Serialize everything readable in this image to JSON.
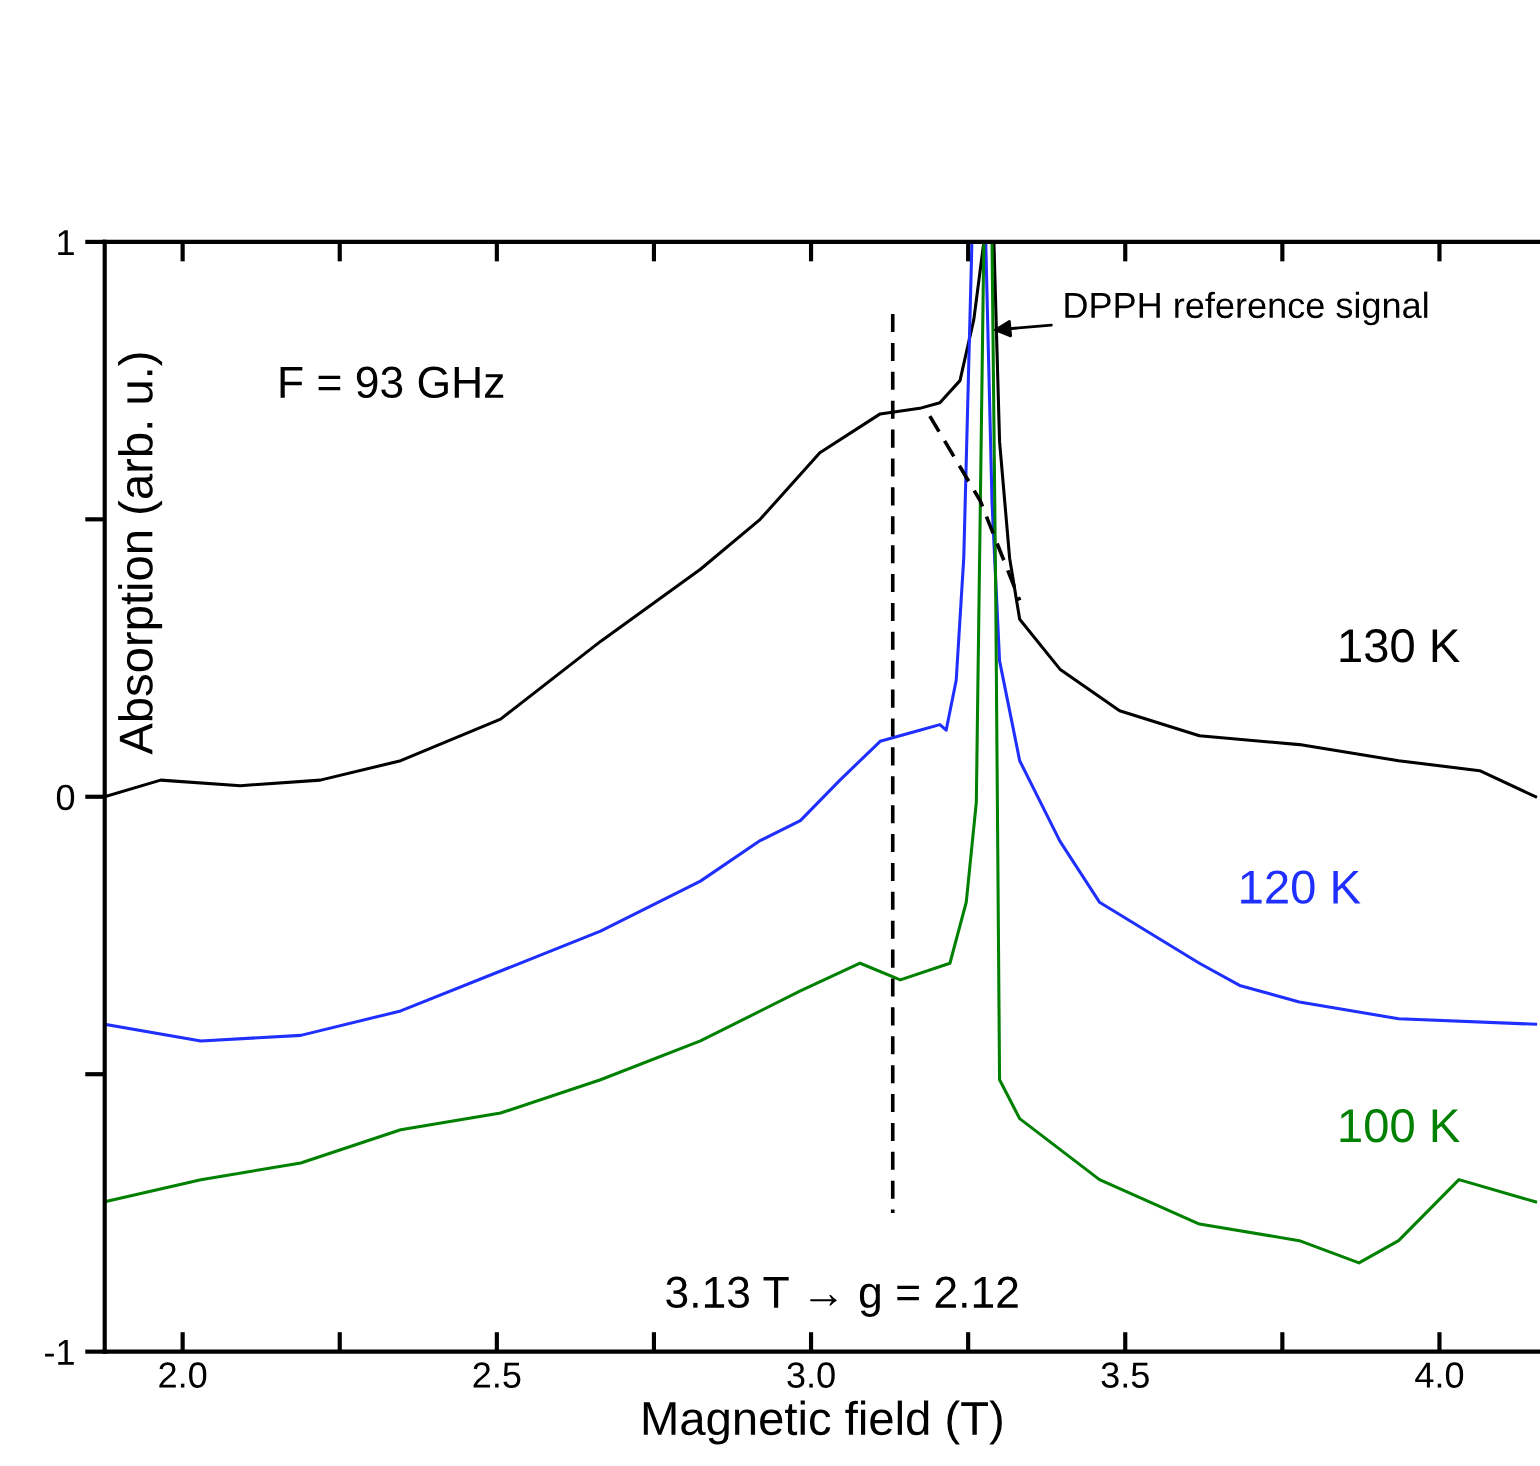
{
  "chart_data": {
    "type": "line",
    "xlabel": "Magnetic field (T)",
    "ylabel": "Absorption (arb. u.)",
    "xlim": [
      1.876,
      4.16
    ],
    "ylim": [
      -1,
      1
    ],
    "xticks": [
      {
        "value": 2.0,
        "label": "2.0"
      },
      {
        "value": 2.25,
        "label": null
      },
      {
        "value": 2.5,
        "label": "2.5"
      },
      {
        "value": 2.75,
        "label": null
      },
      {
        "value": 3.0,
        "label": "3.0"
      },
      {
        "value": 3.25,
        "label": null
      },
      {
        "value": 3.5,
        "label": "3.5"
      },
      {
        "value": 3.75,
        "label": null
      },
      {
        "value": 4.0,
        "label": "4.0"
      }
    ],
    "yticks": [
      -1,
      {
        "value": -0.5,
        "label": null
      },
      0,
      {
        "value": 0.5,
        "label": null
      },
      1
    ],
    "legend": false,
    "grid": false,
    "series": [
      {
        "name": "130 K",
        "color": "#000000",
        "x": [
          1.876,
          1.965,
          2.092,
          2.219,
          2.347,
          2.506,
          2.665,
          2.824,
          2.919,
          3.014,
          3.11,
          3.173,
          3.205,
          3.237,
          3.259,
          3.275,
          3.285,
          3.291,
          3.3,
          3.316,
          3.332,
          3.396,
          3.491,
          3.618,
          3.777,
          3.935,
          4.064,
          4.153
        ],
        "values": [
          0.0,
          0.03,
          0.02,
          0.03,
          0.065,
          0.14,
          0.28,
          0.41,
          0.5,
          0.62,
          0.69,
          0.7,
          0.71,
          0.75,
          0.86,
          1.0,
          1.0,
          1.0,
          0.64,
          0.43,
          0.32,
          0.23,
          0.155,
          0.11,
          0.094,
          0.065,
          0.047,
          0.0
        ]
      },
      {
        "name": "120 K",
        "color": "#1f2fff",
        "x": [
          1.876,
          2.029,
          2.188,
          2.347,
          2.506,
          2.665,
          2.824,
          2.919,
          2.983,
          3.046,
          3.11,
          3.173,
          3.205,
          3.215,
          3.231,
          3.243,
          3.256,
          3.278,
          3.288,
          3.3,
          3.332,
          3.396,
          3.459,
          3.618,
          3.682,
          3.777,
          3.935,
          4.153
        ],
        "values": [
          -0.41,
          -0.44,
          -0.43,
          -0.386,
          -0.314,
          -0.242,
          -0.152,
          -0.079,
          -0.043,
          0.03,
          0.1,
          0.12,
          0.13,
          0.12,
          0.21,
          0.43,
          1.0,
          1.0,
          0.53,
          0.245,
          0.065,
          -0.08,
          -0.19,
          -0.3,
          -0.34,
          -0.37,
          -0.4,
          -0.41
        ]
      },
      {
        "name": "100 K",
        "color": "#008000",
        "x": [
          1.876,
          2.029,
          2.188,
          2.347,
          2.506,
          2.665,
          2.824,
          2.983,
          3.078,
          3.142,
          3.221,
          3.247,
          3.263,
          3.275,
          3.288,
          3.294,
          3.3,
          3.332,
          3.459,
          3.618,
          3.777,
          3.872,
          3.935,
          4.031,
          4.153
        ],
        "values": [
          -0.73,
          -0.69,
          -0.66,
          -0.6,
          -0.57,
          -0.51,
          -0.44,
          -0.35,
          -0.3,
          -0.33,
          -0.3,
          -0.19,
          -0.01,
          1.0,
          1.0,
          0.35,
          -0.51,
          -0.58,
          -0.69,
          -0.77,
          -0.8,
          -0.84,
          -0.8,
          -0.69,
          -0.73
        ]
      },
      {
        "color": "#000000",
        "line_style": "dashed",
        "x": [
          3.189,
          3.269,
          3.332
        ],
        "values": [
          0.686,
          0.534,
          0.354
        ]
      },
      {
        "color": "#000000",
        "line_style": "dashed",
        "x": [
          3.13,
          3.13
        ],
        "values": [
          0.87,
          -0.75
        ]
      }
    ],
    "annotations": [
      "F = 93 GHz",
      {
        "text": "DPPH reference signal",
        "x": 3.28,
        "y": 0.84
      },
      "3.13 T → g = 2.12"
    ]
  }
}
